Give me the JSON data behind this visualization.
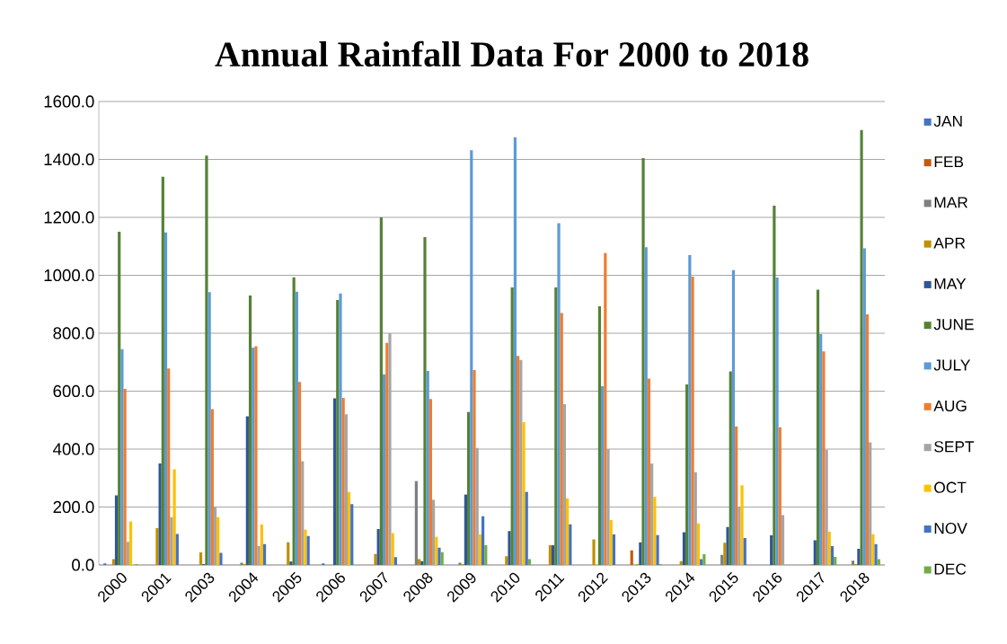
{
  "chart_data": {
    "type": "bar",
    "title": "Annual Rainfall Data For 2000 to 2018",
    "categories": [
      "2000",
      "2001",
      "2003",
      "2004",
      "2005",
      "2006",
      "2007",
      "2008",
      "2009",
      "2010",
      "2011",
      "2012",
      "2013",
      "2014",
      "2015",
      "2016",
      "2017",
      "2018"
    ],
    "series": [
      {
        "name": "JAN",
        "color": "#4472c4",
        "values": [
          5,
          0,
          0,
          0,
          0,
          5,
          0,
          0,
          0,
          0,
          0,
          0,
          0,
          0,
          0,
          0,
          0,
          0
        ]
      },
      {
        "name": "FEB",
        "color": "#c55a11",
        "values": [
          0,
          0,
          0,
          0,
          0,
          0,
          0,
          0,
          0,
          0,
          0,
          0,
          50,
          0,
          0,
          0,
          0,
          0
        ]
      },
      {
        "name": "MAR",
        "color": "#7f7f7f",
        "values": [
          0,
          0,
          0,
          8,
          0,
          0,
          0,
          290,
          8,
          0,
          0,
          0,
          0,
          0,
          35,
          0,
          0,
          15
        ]
      },
      {
        "name": "APR",
        "color": "#bf9000",
        "values": [
          20,
          127,
          43,
          3,
          78,
          0,
          38,
          20,
          2,
          30,
          68,
          88,
          2,
          13,
          77,
          0,
          2,
          3
        ]
      },
      {
        "name": "MAY",
        "color": "#2f5597",
        "values": [
          240,
          350,
          3,
          513,
          12,
          575,
          124,
          13,
          243,
          117,
          68,
          0,
          78,
          113,
          131,
          102,
          85,
          56
        ]
      },
      {
        "name": "JUNE",
        "color": "#548235",
        "values": [
          1150,
          1340,
          1413,
          930,
          993,
          915,
          1200,
          1132,
          528,
          958,
          958,
          893,
          1405,
          623,
          668,
          1240,
          950,
          1502
        ]
      },
      {
        "name": "JULY",
        "color": "#5b9bd5",
        "values": [
          745,
          1148,
          942,
          750,
          943,
          937,
          658,
          670,
          1432,
          1477,
          1180,
          617,
          1097,
          1070,
          1018,
          992,
          797,
          1093
        ]
      },
      {
        "name": "AUG",
        "color": "#ed7d31",
        "values": [
          608,
          678,
          538,
          755,
          632,
          577,
          767,
          573,
          673,
          722,
          870,
          1077,
          643,
          995,
          478,
          475,
          737,
          865
        ]
      },
      {
        "name": "SEPT",
        "color": "#a5a5a5",
        "values": [
          80,
          165,
          200,
          65,
          358,
          520,
          800,
          225,
          404,
          708,
          555,
          400,
          350,
          320,
          200,
          172,
          398,
          423
        ]
      },
      {
        "name": "OCT",
        "color": "#ffc000",
        "values": [
          150,
          330,
          165,
          140,
          122,
          252,
          110,
          97,
          105,
          493,
          230,
          155,
          235,
          143,
          275,
          0,
          115,
          106
        ]
      },
      {
        "name": "NOV",
        "color": "#4472c4",
        "values": [
          0,
          107,
          42,
          72,
          100,
          210,
          27,
          60,
          168,
          253,
          140,
          105,
          103,
          20,
          93,
          0,
          65,
          72
        ]
      },
      {
        "name": "DEC",
        "color": "#70ad47",
        "values": [
          3,
          0,
          0,
          0,
          0,
          0,
          0,
          44,
          68,
          20,
          0,
          0,
          3,
          37,
          0,
          0,
          28,
          20
        ]
      }
    ],
    "ylim": [
      0,
      1600
    ],
    "yticks": [
      {
        "value": 0,
        "label": "0.0"
      },
      {
        "value": 200,
        "label": "200.0"
      },
      {
        "value": 400,
        "label": "400.0"
      },
      {
        "value": 600,
        "label": "600.0"
      },
      {
        "value": 800,
        "label": "800.0"
      },
      {
        "value": 1000,
        "label": "1000.0"
      },
      {
        "value": 1200,
        "label": "1200.0"
      },
      {
        "value": 1400,
        "label": "1400.0"
      },
      {
        "value": 1600,
        "label": "1600.0"
      }
    ],
    "grid": "y",
    "legend": "right"
  }
}
